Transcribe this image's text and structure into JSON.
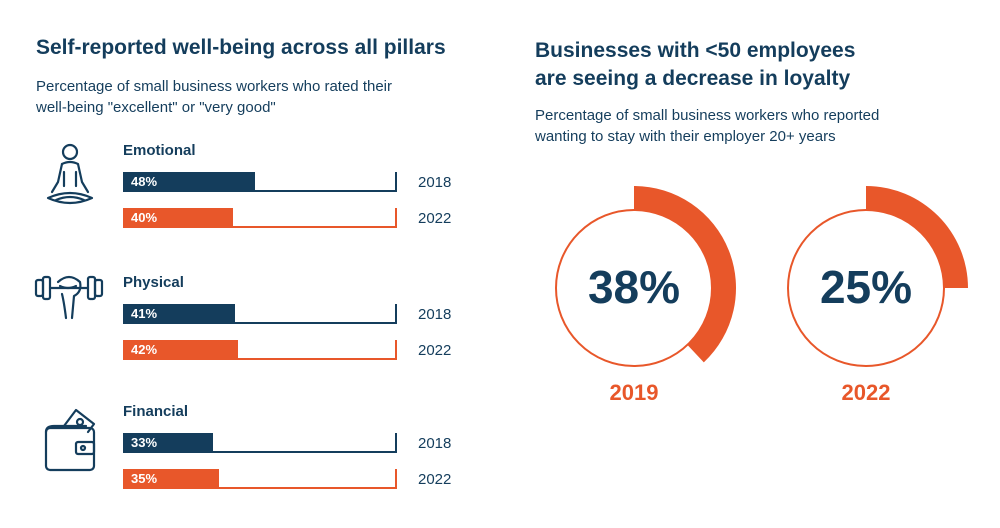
{
  "colors": {
    "navy": "#143d5c",
    "orange": "#e8572a",
    "track": "#f3f3f3"
  },
  "left": {
    "title": "Self-reported well-being across all pillars",
    "subtitle_line1": "Percentage of small business workers who rated their",
    "subtitle_line2": "well-being \"excellent\" or \"very good\""
  },
  "right": {
    "title_line1": "Businesses with <50 employees",
    "title_line2": "are seeing a decrease in loyalty",
    "subtitle_line1": "Percentage of small business workers who reported",
    "subtitle_line2": "wanting to stay with their employer 20+ years"
  },
  "chart_data": [
    {
      "type": "bar",
      "orientation": "horizontal",
      "title": "Self-reported well-being across all pillars",
      "xlim": [
        0,
        100
      ],
      "categories": [
        "Emotional",
        "Physical",
        "Financial"
      ],
      "icons": [
        "meditation-icon",
        "dumbbell-icon",
        "wallet-icon"
      ],
      "series": [
        {
          "name": "2018",
          "color": "#143d5c",
          "values": [
            48,
            41,
            33
          ],
          "labels": [
            "48%",
            "41%",
            "33%"
          ]
        },
        {
          "name": "2022",
          "color": "#e8572a",
          "values": [
            40,
            42,
            35
          ],
          "labels": [
            "40%",
            "42%",
            "35%"
          ]
        }
      ]
    },
    {
      "type": "pie",
      "subtype": "donut",
      "title": "Businesses with <50 employees are seeing a decrease in loyalty",
      "categories": [
        "2019",
        "2022"
      ],
      "values": [
        38,
        25
      ],
      "labels": [
        "38%",
        "25%"
      ],
      "color": "#e8572a"
    }
  ]
}
